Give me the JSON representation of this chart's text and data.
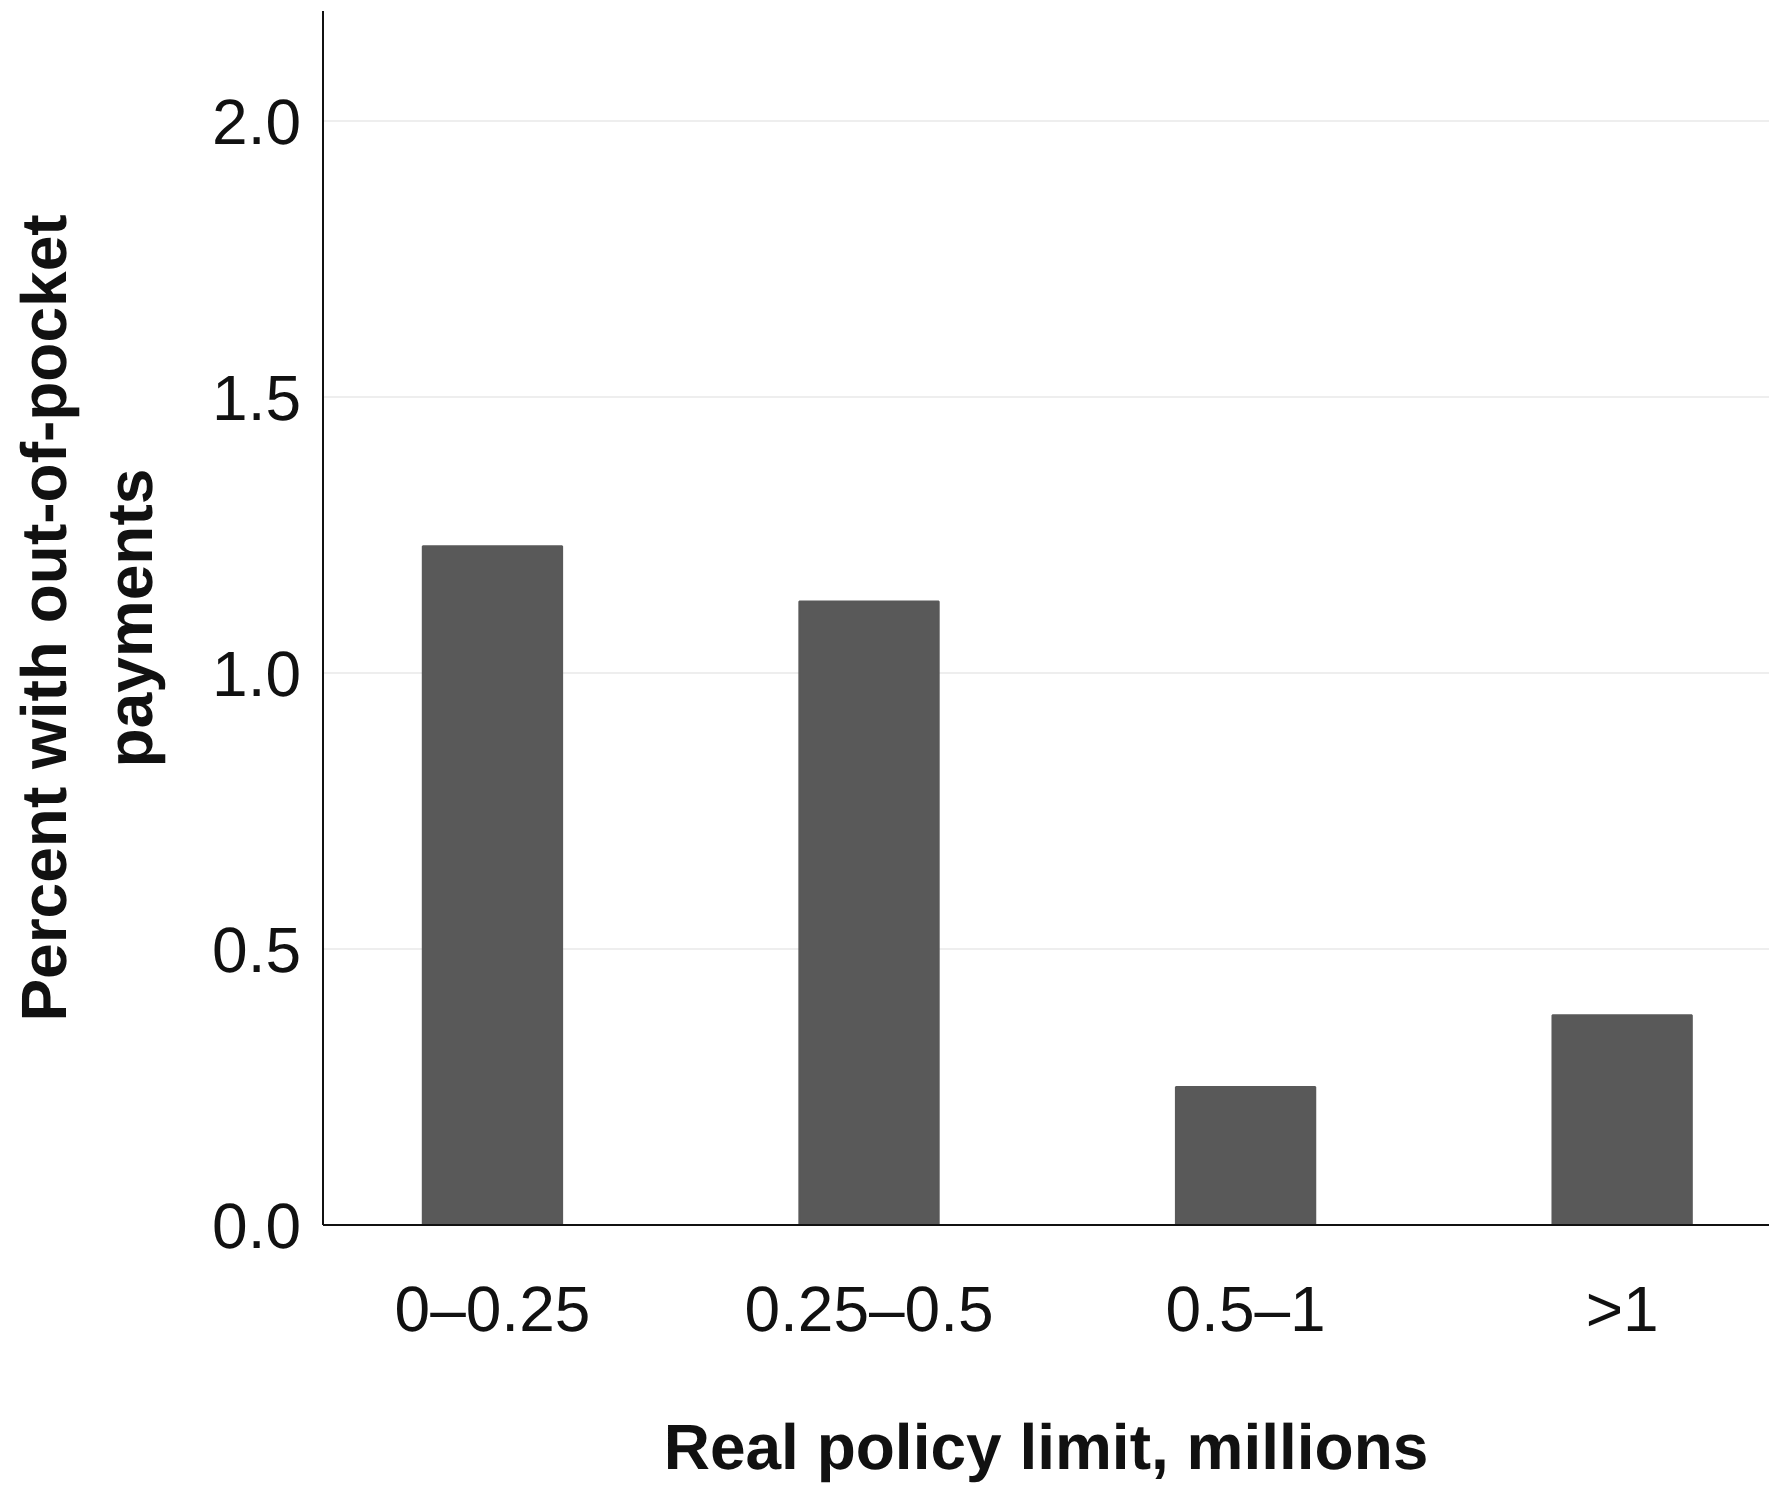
{
  "chart_data": {
    "type": "bar",
    "xlabel": "Real policy limit, millions",
    "ylabel": "Percent with out-of-pocket\npayments",
    "categories": [
      "0–0.25",
      "0.25–0.5",
      "0.5–1",
      ">1"
    ],
    "values": [
      1.23,
      1.13,
      0.25,
      0.38
    ],
    "color": "#595959",
    "ylim": [
      0,
      2.2
    ],
    "yticks": [
      {
        "value": 0,
        "label": "0.0"
      },
      0.5,
      {
        "value": 1,
        "label": "1.0"
      },
      1.5,
      {
        "value": 2,
        "label": "2.0"
      }
    ],
    "grid": "y"
  }
}
